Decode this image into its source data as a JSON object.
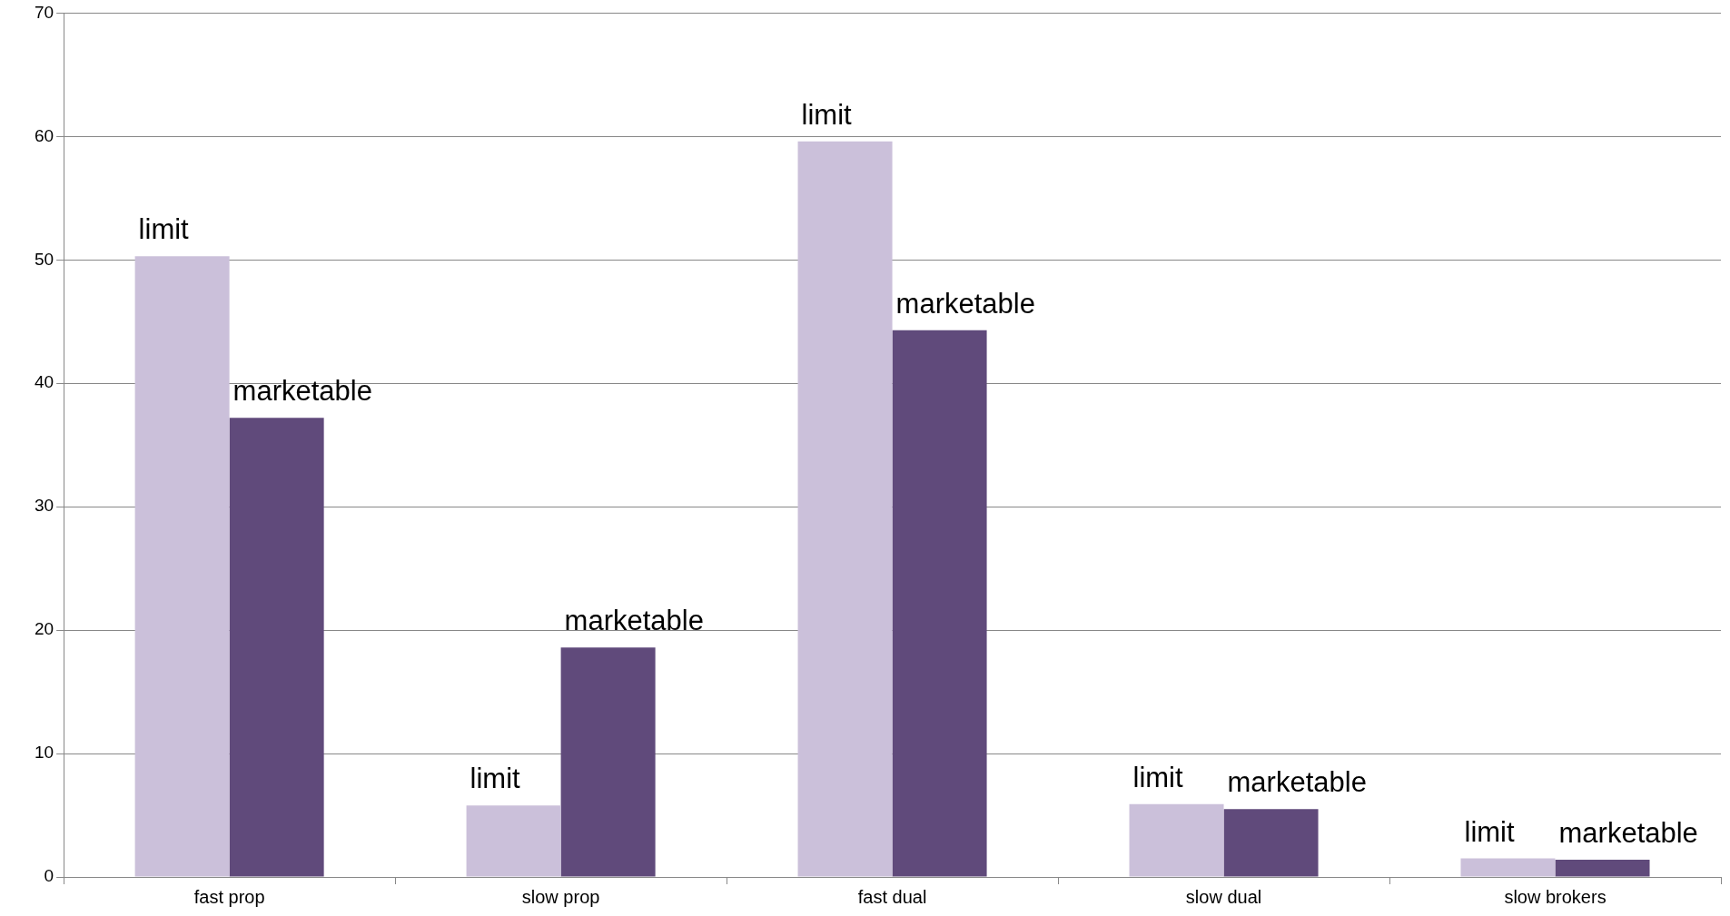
{
  "chart_data": {
    "type": "bar",
    "categories": [
      "fast prop",
      "slow prop",
      "fast dual",
      "slow dual",
      "slow brokers"
    ],
    "series": [
      {
        "name": "limit",
        "color": "#cbc0da",
        "values": [
          50.3,
          5.8,
          59.6,
          5.9,
          1.5
        ]
      },
      {
        "name": "marketable",
        "color": "#604a7b",
        "values": [
          37.2,
          18.6,
          44.3,
          5.5,
          1.4
        ]
      }
    ],
    "ylim": [
      0,
      70
    ],
    "yticks": [
      0,
      10,
      20,
      30,
      40,
      50,
      60,
      70
    ],
    "grid": "y",
    "legend": false
  }
}
